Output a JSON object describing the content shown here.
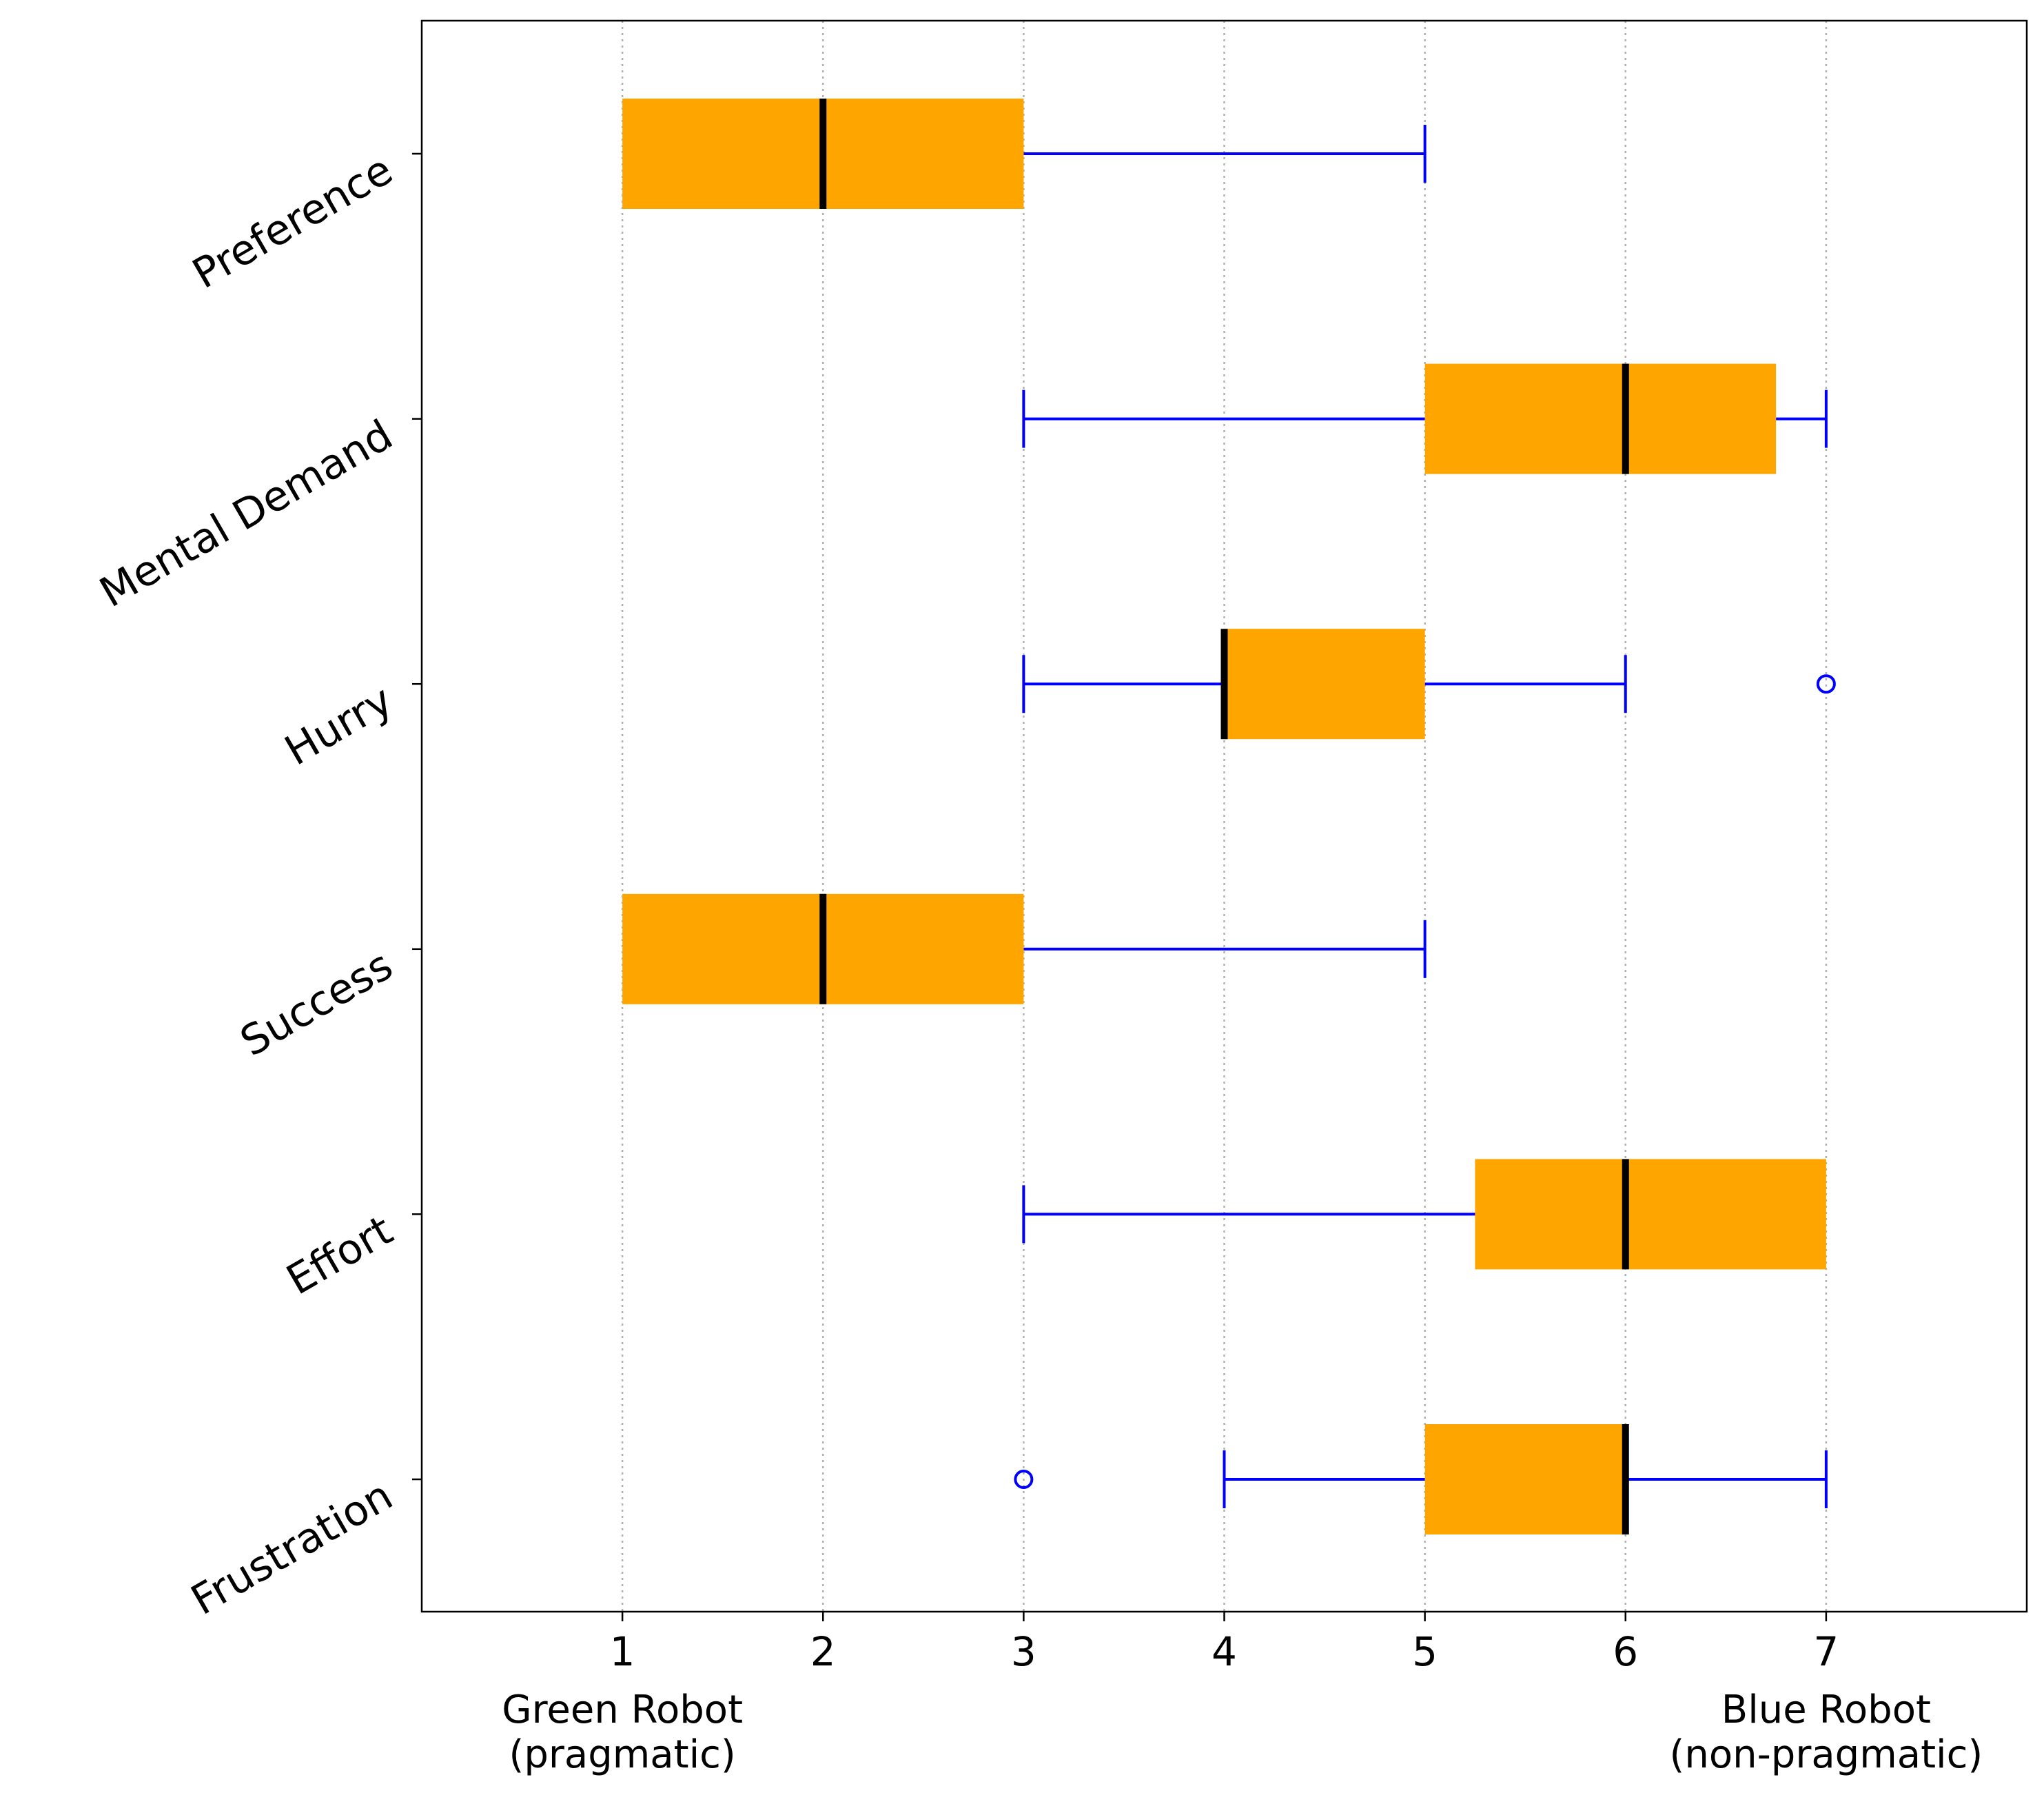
{
  "chart_data": {
    "type": "boxplot",
    "orientation": "horizontal",
    "title": "",
    "xlabel": "",
    "ylabel": "",
    "xlim": [
      0,
      8
    ],
    "xticks": [
      1,
      2,
      3,
      4,
      5,
      6,
      7
    ],
    "grid": "vertical dotted",
    "x_end_labels": {
      "left": {
        "line1": "Green Robot",
        "line2": "(pragmatic)",
        "at": 1
      },
      "right": {
        "line1": "Blue Robot",
        "line2": "(non-pragmatic)",
        "at": 7
      }
    },
    "categories": [
      "Preference",
      "Mental Demand",
      "Hurry",
      "Success",
      "Effort",
      "Frustration"
    ],
    "boxes": [
      {
        "label": "Preference",
        "whisker_low": 1,
        "q1": 1,
        "median": 2,
        "q3": 3,
        "whisker_high": 5,
        "outliers": []
      },
      {
        "label": "Mental Demand",
        "whisker_low": 3,
        "q1": 5,
        "median": 6,
        "q3": 6.75,
        "whisker_high": 7,
        "outliers": []
      },
      {
        "label": "Hurry",
        "whisker_low": 3,
        "q1": 4,
        "median": 4,
        "q3": 5,
        "whisker_high": 6,
        "outliers": [
          7
        ]
      },
      {
        "label": "Success",
        "whisker_low": 1,
        "q1": 1,
        "median": 2,
        "q3": 3,
        "whisker_high": 5,
        "outliers": []
      },
      {
        "label": "Effort",
        "whisker_low": 3,
        "q1": 5.25,
        "median": 6,
        "q3": 7,
        "whisker_high": 7,
        "outliers": []
      },
      {
        "label": "Frustration",
        "whisker_low": 4,
        "q1": 5,
        "median": 6,
        "q3": 6,
        "whisker_high": 7,
        "outliers": [
          3
        ]
      }
    ],
    "colors": {
      "box": "#FFA500",
      "whisker": "#0000FF",
      "median": "#000000",
      "outlier": "#0000FF",
      "grid": "#b0b0b0",
      "axis": "#000000"
    }
  }
}
